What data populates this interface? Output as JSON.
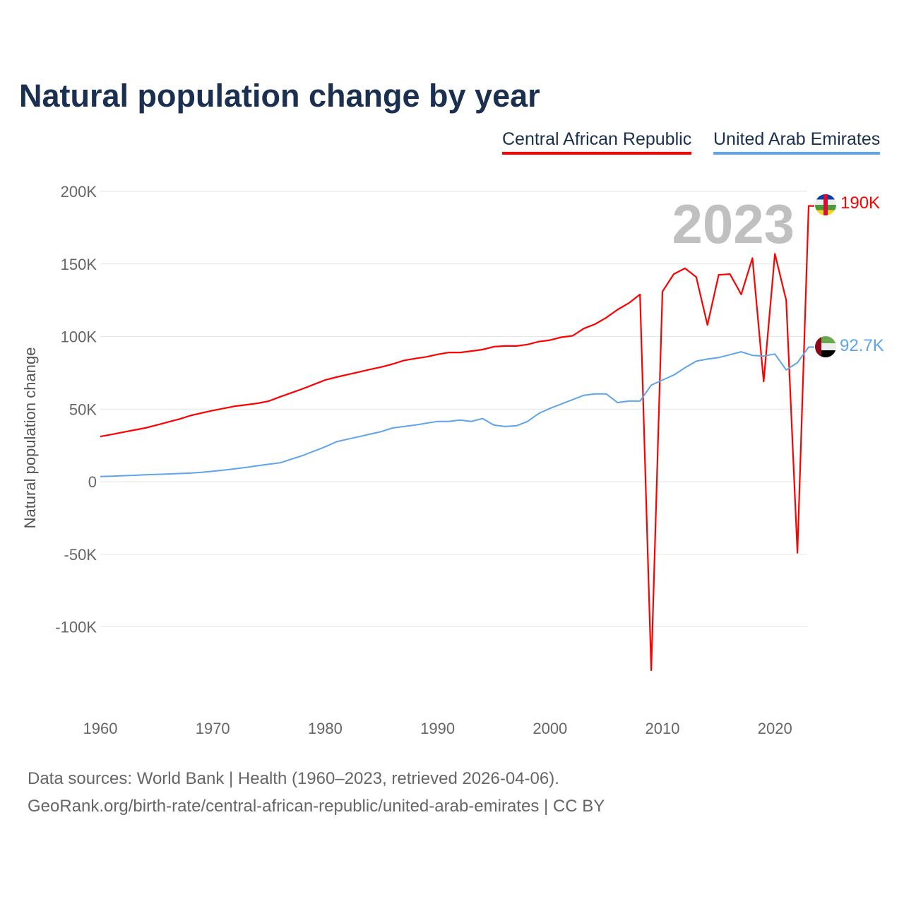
{
  "title": "Natural population change by year",
  "legend": [
    "Central African Republic",
    "United Arab Emirates"
  ],
  "year_label": "2023",
  "end_labels": {
    "car": "190K",
    "uae": "92.7K"
  },
  "footer": {
    "line1": "Data sources: World Bank | Health (1960–2023, retrieved 2026-04-06).",
    "line2": "GeoRank.org/birth-rate/central-african-republic/united-arab-emirates | CC BY"
  },
  "chart_data": {
    "type": "line",
    "title": "Natural population change by year",
    "xlabel": "",
    "ylabel": "Natural population change",
    "xlim": [
      1960,
      2023
    ],
    "ylim": [
      -150000,
      200000
    ],
    "xticks": [
      1960,
      1970,
      1980,
      1990,
      2000,
      2010,
      2020
    ],
    "yticks": [
      200000,
      150000,
      100000,
      50000,
      0,
      -50000,
      -100000
    ],
    "ytick_labels": [
      "200K",
      "150K",
      "100K",
      "50K",
      "0",
      "-50K",
      "-100K"
    ],
    "grid": true,
    "legend_position": "top-right",
    "x_start": 1960,
    "series": [
      {
        "name": "Central African Republic",
        "color": "#ff0000",
        "values": [
          31100,
          32500,
          34000,
          35500,
          37000,
          39000,
          41000,
          43000,
          45500,
          47300,
          49000,
          50500,
          52000,
          53000,
          54000,
          55500,
          58500,
          61200,
          64000,
          67000,
          70000,
          72000,
          73800,
          75500,
          77300,
          79000,
          81000,
          83500,
          84800,
          86000,
          87700,
          89000,
          89000,
          90000,
          91000,
          93000,
          93500,
          93500,
          94500,
          96500,
          97500,
          99500,
          100500,
          105500,
          108500,
          113000,
          118500,
          123000,
          129000,
          -130000,
          131000,
          143000,
          147000,
          141000,
          108000,
          142500,
          143000,
          129000,
          154000,
          69000,
          157000,
          125000,
          -49000,
          190000
        ]
      },
      {
        "name": "United Arab Emirates",
        "color": "#5ea4ea",
        "values": [
          3500,
          3800,
          4100,
          4400,
          4700,
          5000,
          5300,
          5600,
          5900,
          6400,
          7200,
          8000,
          8900,
          9900,
          11000,
          12000,
          13000,
          15500,
          18000,
          21000,
          24000,
          27500,
          29300,
          31000,
          32800,
          34500,
          37000,
          38000,
          39000,
          40300,
          41500,
          41500,
          42500,
          41500,
          43500,
          39000,
          38000,
          38500,
          41500,
          47000,
          50500,
          53500,
          56500,
          59500,
          60500,
          60500,
          54500,
          55500,
          55500,
          66500,
          70000,
          73500,
          78500,
          83000,
          84500,
          85500,
          87500,
          89500,
          87000,
          86500,
          88000,
          77000,
          82000,
          92700
        ]
      }
    ]
  }
}
